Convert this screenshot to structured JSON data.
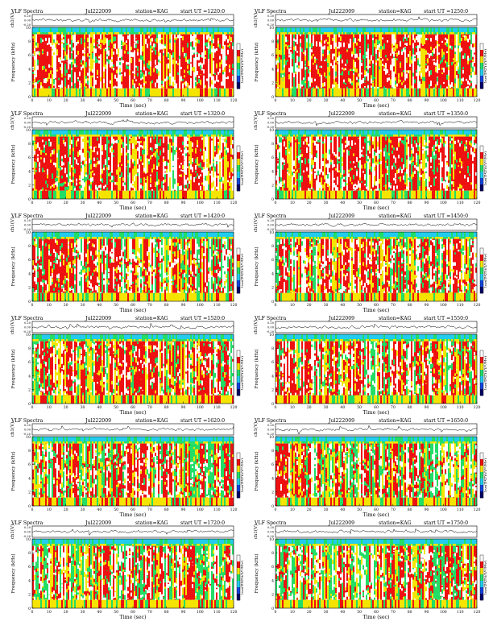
{
  "common": {
    "station": "station=KAG",
    "uppers_label": "ch1(V)",
    "ylabel": "Frequency (kHz)",
    "xlabel": "Time (sec)",
    "colorbar_label": "log(PSD)(V²/Hz)",
    "y_ticks": [
      "0",
      "2",
      "4",
      "6",
      "8",
      "10"
    ],
    "x_ticks": [
      "0",
      "10",
      "20",
      "30",
      "40",
      "50",
      "60",
      "70",
      "80",
      "90",
      "100",
      "110",
      "120"
    ],
    "xlim": [
      0,
      120
    ],
    "ylim": [
      0,
      10
    ],
    "waveform_ticks": [
      "0.20",
      "0.00",
      "-0.20"
    ],
    "colormap": [
      "#ffffff",
      "#ee1111",
      "#f4e400",
      "#22dd66",
      "#22ccee",
      "#1144dd",
      "#000066"
    ]
  },
  "panels": [
    {
      "title": "VLF Spectra",
      "date": "Jul222009",
      "start": "start UT =1220:0",
      "density": 0.92
    },
    {
      "title": "VLF Spectra",
      "date": "Jul222009",
      "start": "start UT =1250:0",
      "density": 0.9
    },
    {
      "title": "VLF Spectra",
      "date": "Jul222009",
      "start": "start UT =1320:0",
      "density": 0.86
    },
    {
      "title": "VLF Spectra",
      "date": "Jul222009",
      "start": "start UT =1350:0",
      "density": 0.84
    },
    {
      "title": "VLF Spectra",
      "date": "Jul222009",
      "start": "start UT =1420:0",
      "density": 0.72
    },
    {
      "title": "VLF Spectra",
      "date": "Jul222009",
      "start": "start UT =1450:0",
      "density": 0.7
    },
    {
      "title": "VLF Spectra",
      "date": "Jul222009",
      "start": "start UT =1520:0",
      "density": 0.64
    },
    {
      "title": "VLF Spectra",
      "date": "Jul222009",
      "start": "start UT =1550:0",
      "density": 0.6
    },
    {
      "title": "VLF Spectra",
      "date": "Jul222009",
      "start": "start UT =1620:0",
      "density": 0.48
    },
    {
      "title": "VLF Spectra",
      "date": "Jul222009",
      "start": "start UT =1650:0",
      "density": 0.4
    },
    {
      "title": "VLF Spectra",
      "date": "Jul222009",
      "start": "start UT =1720:0",
      "density": 0.3
    },
    {
      "title": "VLF Spectra",
      "date": "Jul222009",
      "start": "start UT =1750:0",
      "density": 0.3
    }
  ],
  "chart_data": {
    "type": "heatmap",
    "panel_count": 12,
    "xlim": [
      0,
      120
    ],
    "ylim": [
      0,
      10
    ],
    "colors": [
      "#ffffff",
      "#ee1111",
      "#f4e400",
      "#22dd66",
      "#22ccee",
      "#1144dd",
      "#000066"
    ]
  }
}
